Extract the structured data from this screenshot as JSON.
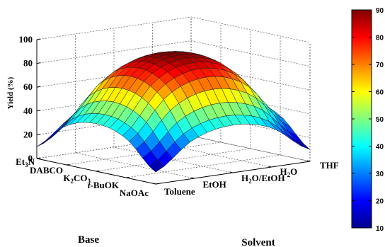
{
  "chart_data": {
    "type": "surface3d",
    "zlabel": "Yield (%)",
    "zlim": [
      0,
      100
    ],
    "zticks": [
      "0",
      "20",
      "40",
      "60",
      "80",
      "100"
    ],
    "base_axis": {
      "label": "Base",
      "ticks": [
        "Et3N",
        "DABCO",
        "K2CO3",
        "t-BuOK",
        "NaOAc"
      ],
      "ticks_html": [
        [
          "Et",
          "3",
          "N"
        ],
        [
          "DABCO"
        ],
        [
          "K",
          "2",
          "CO",
          "3"
        ],
        [
          "t-BuOK"
        ],
        [
          "NaOAc"
        ]
      ]
    },
    "solvent_axis": {
      "label": "Solvent",
      "ticks": [
        "Toluene",
        "EtOH",
        "H2O/EtOH",
        "H2O",
        "THF"
      ]
    },
    "surface": {
      "shape": "dome",
      "peak_yield": 90,
      "peak_location": "center (K2CO3, H2O/EtOH)",
      "corner_yields": {
        "Et3N_Toluene": 10,
        "Et3N_THF": 10,
        "NaOAc_Toluene": 10,
        "NaOAc_THF": 10
      },
      "grid": [
        [
          10,
          33,
          40,
          33,
          10
        ],
        [
          33,
          68,
          79,
          68,
          33
        ],
        [
          40,
          79,
          90,
          79,
          40
        ],
        [
          33,
          68,
          79,
          68,
          33
        ],
        [
          10,
          33,
          40,
          33,
          10
        ]
      ]
    },
    "colorbar": {
      "colormap": "jet",
      "range": [
        10,
        90
      ],
      "ticks": [
        "10",
        "20",
        "30",
        "40",
        "50",
        "60",
        "70",
        "80",
        "90"
      ]
    },
    "grid": true,
    "legend": "colorbar-right"
  }
}
